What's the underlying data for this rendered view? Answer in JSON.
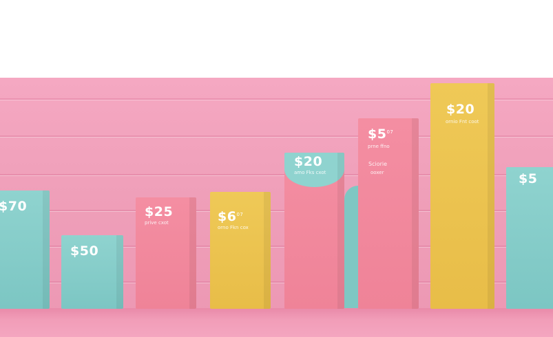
{
  "scene": {
    "colors": {
      "wall": "#f2a3bd",
      "teal": "#8fd3cf",
      "pink": "#f48ea2",
      "yellow": "#efc957"
    }
  },
  "bars": [
    {
      "id": "b1",
      "color": "teal",
      "price": "$70",
      "sup": "",
      "caption": ""
    },
    {
      "id": "b2",
      "color": "teal",
      "price": "$50",
      "sup": "",
      "caption": ""
    },
    {
      "id": "b3",
      "color": "pink",
      "price": "$25",
      "sup": "",
      "caption": "prive cxot"
    },
    {
      "id": "b4",
      "color": "yellow",
      "price": "$6",
      "sup": "07",
      "caption": "orno Fkn cox"
    },
    {
      "id": "b5",
      "color": "pink",
      "price": "$20",
      "sup": "",
      "caption": "amo Fks cxot"
    },
    {
      "id": "b6",
      "color": "pink",
      "price": "$5",
      "sup": "07",
      "caption": "prne ffno",
      "caption2": "Sciorie",
      "caption3": "ooxer"
    },
    {
      "id": "b7",
      "color": "yellow",
      "price": "$20",
      "sup": "",
      "caption": "ornio Fnt coot"
    },
    {
      "id": "b8",
      "color": "teal",
      "price": "$5",
      "sup": "",
      "caption": ""
    }
  ]
}
